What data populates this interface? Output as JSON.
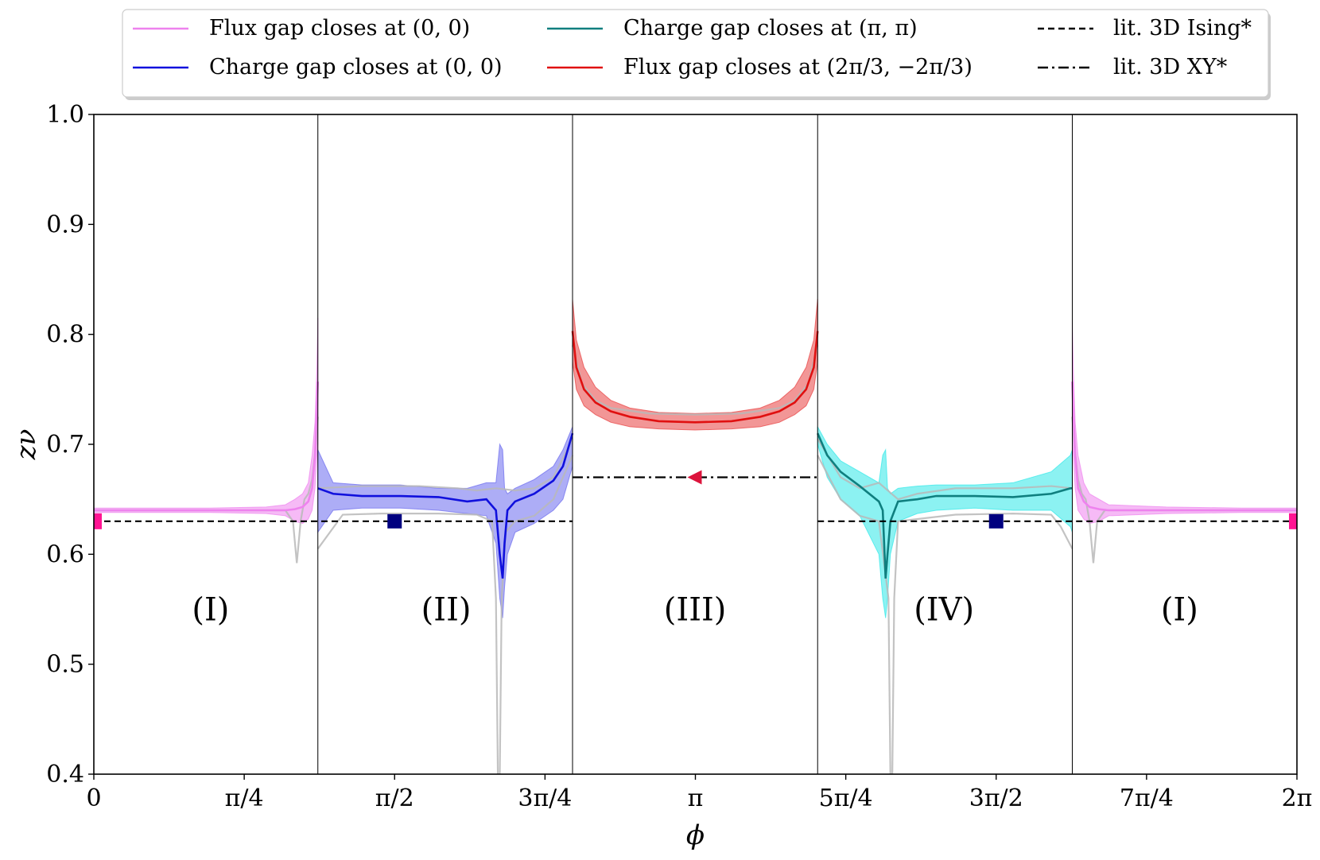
{
  "chart_data": {
    "type": "line",
    "title": "",
    "xlabel": "ϕ",
    "ylabel": "zν",
    "xlim": [
      0,
      6.2832
    ],
    "ylim": [
      0.4,
      1.0
    ],
    "grid": false,
    "legend_position": "top",
    "x_ticks": [
      {
        "value": 0,
        "label": "0"
      },
      {
        "value": 0.7854,
        "label": "π/4"
      },
      {
        "value": 1.5708,
        "label": "π/2"
      },
      {
        "value": 2.3562,
        "label": "3π/4"
      },
      {
        "value": 3.1416,
        "label": "π"
      },
      {
        "value": 3.927,
        "label": "5π/4"
      },
      {
        "value": 4.7124,
        "label": "3π/2"
      },
      {
        "value": 5.4978,
        "label": "7π/4"
      },
      {
        "value": 6.2832,
        "label": "2π"
      }
    ],
    "y_ticks": [
      {
        "value": 0.4,
        "label": "0.4"
      },
      {
        "value": 0.5,
        "label": "0.5"
      },
      {
        "value": 0.6,
        "label": "0.6"
      },
      {
        "value": 0.7,
        "label": "0.7"
      },
      {
        "value": 0.8,
        "label": "0.8"
      },
      {
        "value": 0.9,
        "label": "0.9"
      },
      {
        "value": 1.0,
        "label": "1.0"
      }
    ],
    "region_boundaries": [
      1.17,
      2.5,
      3.78,
      5.11
    ],
    "regions": [
      {
        "label": "(I)",
        "x": 0.61,
        "y": 0.55
      },
      {
        "label": "(II)",
        "x": 1.84,
        "y": 0.55
      },
      {
        "label": "(III)",
        "x": 3.14,
        "y": 0.55
      },
      {
        "label": "(IV)",
        "x": 4.44,
        "y": 0.55
      },
      {
        "label": "(I)",
        "x": 5.67,
        "y": 0.55
      }
    ],
    "series": [
      {
        "name": "Flux gap closes at (0,0)",
        "label_html": "Flux gap closes at (0, 0)",
        "color": "#ee82ee",
        "band_color": "#ee82ee",
        "x": [
          0.0,
          0.3,
          0.6,
          0.9,
          1.0,
          1.05,
          1.09,
          1.12,
          1.14,
          1.155,
          1.165,
          1.17
        ],
        "y": [
          0.64,
          0.64,
          0.64,
          0.64,
          0.64,
          0.641,
          0.643,
          0.648,
          0.66,
          0.69,
          0.73,
          0.757
        ],
        "lower": [
          0.638,
          0.638,
          0.638,
          0.637,
          0.635,
          0.63,
          0.628,
          0.632,
          0.64,
          0.66,
          0.69,
          0.7
        ],
        "upper": [
          0.642,
          0.642,
          0.642,
          0.643,
          0.645,
          0.65,
          0.655,
          0.665,
          0.69,
          0.72,
          0.77,
          0.815
        ]
      },
      {
        "name": "Flux gap closes at (0,0) mirrored",
        "label_html": "",
        "legend": false,
        "color": "#ee82ee",
        "band_color": "#ee82ee",
        "x": [
          5.11,
          5.115,
          5.125,
          5.14,
          5.17,
          5.2,
          5.25,
          5.3,
          5.6,
          6.0,
          6.2832
        ],
        "y": [
          0.757,
          0.73,
          0.69,
          0.66,
          0.648,
          0.643,
          0.641,
          0.64,
          0.64,
          0.64,
          0.64
        ],
        "lower": [
          0.7,
          0.69,
          0.66,
          0.64,
          0.632,
          0.628,
          0.63,
          0.635,
          0.637,
          0.638,
          0.638
        ],
        "upper": [
          0.815,
          0.77,
          0.72,
          0.69,
          0.665,
          0.655,
          0.65,
          0.645,
          0.643,
          0.642,
          0.642
        ]
      },
      {
        "name": "Charge gap closes at (0,0)",
        "label_html": "Charge gap closes at (0, 0)",
        "color": "#1010dd",
        "band_color": "#6a6aee",
        "x": [
          1.17,
          1.25,
          1.4,
          1.6,
          1.8,
          1.95,
          2.05,
          2.1,
          2.12,
          2.135,
          2.145,
          2.16,
          2.2,
          2.3,
          2.4,
          2.45,
          2.5
        ],
        "y": [
          0.66,
          0.655,
          0.653,
          0.653,
          0.652,
          0.648,
          0.65,
          0.64,
          0.6,
          0.578,
          0.61,
          0.64,
          0.648,
          0.655,
          0.667,
          0.68,
          0.71
        ],
        "lower": [
          0.62,
          0.64,
          0.642,
          0.642,
          0.64,
          0.637,
          0.635,
          0.61,
          0.56,
          0.542,
          0.57,
          0.6,
          0.62,
          0.628,
          0.64,
          0.65,
          0.68
        ],
        "upper": [
          0.695,
          0.665,
          0.663,
          0.663,
          0.66,
          0.66,
          0.665,
          0.665,
          0.7,
          0.695,
          0.66,
          0.655,
          0.66,
          0.668,
          0.68,
          0.695,
          0.716
        ]
      },
      {
        "name": "Charge gap closes at (π,π)",
        "label_html": "Charge gap closes at (π, π)",
        "color": "#0f7f7f",
        "band_color": "#2de8e8",
        "x": [
          3.78,
          3.83,
          3.9,
          4.0,
          4.1,
          4.12,
          4.135,
          4.145,
          4.16,
          4.2,
          4.3,
          4.4,
          4.6,
          4.8,
          5.0,
          5.1,
          5.11
        ],
        "y": [
          0.71,
          0.69,
          0.675,
          0.662,
          0.648,
          0.64,
          0.578,
          0.6,
          0.63,
          0.648,
          0.65,
          0.653,
          0.653,
          0.652,
          0.655,
          0.66,
          0.66
        ],
        "lower": [
          0.7,
          0.67,
          0.65,
          0.635,
          0.6,
          0.56,
          0.542,
          0.56,
          0.6,
          0.63,
          0.637,
          0.64,
          0.642,
          0.64,
          0.64,
          0.625,
          0.62
        ],
        "upper": [
          0.716,
          0.7,
          0.685,
          0.675,
          0.665,
          0.69,
          0.695,
          0.66,
          0.655,
          0.66,
          0.662,
          0.663,
          0.663,
          0.665,
          0.675,
          0.69,
          0.695
        ]
      },
      {
        "name": "Flux gap closes at (2π/3,−2π/3)",
        "label_html": "Flux gap closes at (2π/3, −2π/3)",
        "color": "#e01010",
        "band_color": "#e84040",
        "x": [
          2.5,
          2.52,
          2.56,
          2.62,
          2.7,
          2.8,
          2.95,
          3.14,
          3.33,
          3.48,
          3.58,
          3.66,
          3.72,
          3.76,
          3.78
        ],
        "y": [
          0.803,
          0.77,
          0.75,
          0.738,
          0.73,
          0.725,
          0.721,
          0.72,
          0.721,
          0.725,
          0.73,
          0.738,
          0.75,
          0.77,
          0.803
        ],
        "lower": [
          0.775,
          0.75,
          0.735,
          0.727,
          0.72,
          0.716,
          0.714,
          0.713,
          0.714,
          0.716,
          0.72,
          0.727,
          0.735,
          0.75,
          0.775
        ],
        "upper": [
          0.832,
          0.795,
          0.77,
          0.752,
          0.74,
          0.733,
          0.729,
          0.728,
          0.729,
          0.733,
          0.74,
          0.752,
          0.77,
          0.795,
          0.832
        ]
      }
    ],
    "gray_curves": [
      {
        "x": [
          0.0,
          0.5,
          0.9,
          1.0,
          1.04,
          1.06,
          1.08,
          1.1,
          1.12,
          1.14,
          1.16,
          1.17
        ],
        "y": [
          0.64,
          0.64,
          0.64,
          0.64,
          0.63,
          0.592,
          0.63,
          0.65,
          0.655,
          0.668,
          0.7,
          0.725
        ]
      },
      {
        "x": [
          5.11,
          5.12,
          5.14,
          5.16,
          5.18,
          5.2,
          5.22,
          5.24,
          5.28,
          5.5,
          6.2832
        ],
        "y": [
          0.725,
          0.7,
          0.668,
          0.655,
          0.65,
          0.63,
          0.592,
          0.63,
          0.64,
          0.64,
          0.64
        ]
      },
      {
        "x": [
          1.17,
          1.3,
          1.5,
          1.8,
          2.0,
          2.08,
          2.1,
          2.11,
          2.115,
          2.12,
          2.13,
          2.15,
          2.2,
          2.3,
          2.4,
          2.5
        ],
        "y": [
          0.605,
          0.636,
          0.637,
          0.637,
          0.636,
          0.63,
          0.56,
          0.4,
          0.4,
          0.4,
          0.56,
          0.62,
          0.63,
          0.635,
          0.65,
          0.69
        ]
      },
      {
        "x": [
          1.17,
          1.4,
          1.7,
          1.9,
          2.0,
          2.1,
          2.2,
          2.3,
          2.4,
          2.5
        ],
        "y": [
          0.66,
          0.662,
          0.662,
          0.66,
          0.658,
          0.66,
          0.658,
          0.66,
          0.67,
          0.705
        ]
      },
      {
        "x": [
          3.78,
          3.9,
          4.0,
          4.1,
          4.15,
          4.16,
          4.165,
          4.17,
          4.18,
          4.2,
          4.5,
          4.8,
          5.0,
          5.05,
          5.11
        ],
        "y": [
          0.69,
          0.65,
          0.635,
          0.63,
          0.56,
          0.4,
          0.4,
          0.4,
          0.56,
          0.63,
          0.636,
          0.637,
          0.636,
          0.625,
          0.605
        ]
      },
      {
        "x": [
          3.78,
          3.9,
          4.0,
          4.1,
          4.2,
          4.3,
          4.5,
          4.8,
          5.0,
          5.11
        ],
        "y": [
          0.705,
          0.67,
          0.66,
          0.665,
          0.65,
          0.655,
          0.66,
          0.66,
          0.662,
          0.66
        ]
      },
      {
        "x": [
          2.5,
          2.55,
          2.62,
          2.7,
          2.9,
          3.14,
          3.38,
          3.58,
          3.66,
          3.73,
          3.78
        ],
        "y": [
          0.79,
          0.755,
          0.74,
          0.733,
          0.728,
          0.727,
          0.728,
          0.733,
          0.74,
          0.755,
          0.79
        ]
      }
    ],
    "reference_lines": [
      {
        "name": "lit. 3D Ising*",
        "style": "dashed",
        "y": 0.63,
        "segments": [
          [
            0,
            2.5
          ],
          [
            3.78,
            6.2832
          ]
        ],
        "color": "#000000"
      },
      {
        "name": "lit. 3D XY*",
        "style": "dashdot",
        "y": 0.67,
        "segments": [
          [
            2.5,
            3.78
          ]
        ],
        "color": "#000000"
      }
    ],
    "markers": [
      {
        "shape": "square",
        "x": 0.03,
        "y": 0.63,
        "color": "#ff1493",
        "edge": "left"
      },
      {
        "shape": "square",
        "x": 1.5708,
        "y": 0.63,
        "color": "#000080"
      },
      {
        "shape": "triangle-left",
        "x": 3.1416,
        "y": 0.67,
        "color": "#dc143c"
      },
      {
        "shape": "square",
        "x": 4.7124,
        "y": 0.63,
        "color": "#000080"
      },
      {
        "shape": "square",
        "x": 6.25,
        "y": 0.63,
        "color": "#ff1493",
        "edge": "right"
      }
    ],
    "legend": [
      {
        "label": "Flux gap closes at (0, 0)",
        "color": "#ee82ee",
        "style": "solid"
      },
      {
        "label": "Charge gap closes at (0, 0)",
        "color": "#1010dd",
        "style": "solid"
      },
      {
        "label": "Charge gap closes at (π, π)",
        "color": "#0f7f7f",
        "style": "solid"
      },
      {
        "label": "Flux gap closes at (2π/3, −2π/3)",
        "color": "#e01010",
        "style": "solid"
      },
      {
        "label": "lit. 3D Ising*",
        "color": "#000000",
        "style": "dashed"
      },
      {
        "label": "lit. 3D XY*",
        "color": "#000000",
        "style": "dashdot"
      }
    ]
  }
}
